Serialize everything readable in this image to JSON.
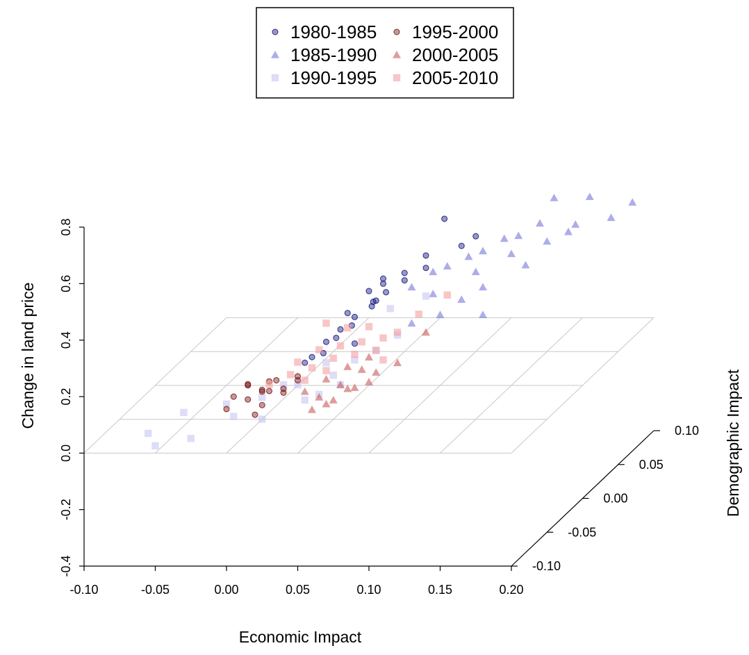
{
  "chart_data": {
    "type": "scatter",
    "projection": "3d",
    "title": "",
    "xlabel": "Economic Impact",
    "ylabel": "Demographic Impact",
    "zlabel": "Change in land price",
    "xlim": [
      -0.1,
      0.2
    ],
    "ylim": [
      -0.1,
      0.1
    ],
    "zlim": [
      -0.4,
      0.8
    ],
    "x_ticks": [
      "-0.10",
      "-0.05",
      "0.00",
      "0.05",
      "0.10",
      "0.15",
      "0.20"
    ],
    "y_ticks": [
      "-0.10",
      "-0.05",
      "0.00",
      "0.05",
      "0.10"
    ],
    "z_ticks": [
      "-0.4",
      "-0.2",
      "0.0",
      "0.2",
      "0.4",
      "0.6",
      "0.8"
    ],
    "grid": true,
    "legend_position": "top",
    "series": [
      {
        "name": "1980-1985",
        "marker": "circle",
        "color": "#1a1a80",
        "points": [
          [
            0.078,
            0.05,
            0.47
          ],
          [
            0.06,
            0.0,
            0.36
          ],
          [
            0.065,
            0.02,
            0.35
          ],
          [
            0.062,
            0.0,
            0.33
          ],
          [
            0.058,
            -0.01,
            0.32
          ],
          [
            0.055,
            0.0,
            0.3
          ],
          [
            0.05,
            -0.02,
            0.29
          ],
          [
            0.052,
            0.0,
            0.28
          ],
          [
            0.045,
            -0.03,
            0.27
          ],
          [
            0.048,
            -0.02,
            0.26
          ],
          [
            0.04,
            -0.04,
            0.25
          ],
          [
            0.042,
            -0.03,
            0.24
          ],
          [
            0.035,
            -0.05,
            0.22
          ],
          [
            0.038,
            -0.04,
            0.21
          ],
          [
            0.03,
            -0.05,
            0.2
          ],
          [
            0.06,
            0.03,
            0.3
          ],
          [
            0.07,
            0.04,
            0.32
          ],
          [
            0.085,
            0.06,
            0.35
          ],
          [
            0.09,
            0.07,
            0.36
          ],
          [
            0.05,
            0.02,
            0.33
          ],
          [
            0.045,
            0.01,
            0.31
          ],
          [
            0.055,
            -0.03,
            0.22
          ],
          [
            0.04,
            -0.01,
            0.28
          ],
          [
            0.065,
            0.05,
            0.34
          ]
        ]
      },
      {
        "name": "1985-1990",
        "marker": "triangle",
        "color": "#6a6ad8",
        "points": [
          [
            0.15,
            0.06,
            0.52
          ],
          [
            0.17,
            0.07,
            0.5
          ],
          [
            0.19,
            0.06,
            0.45
          ],
          [
            0.17,
            0.05,
            0.45
          ],
          [
            0.2,
            0.07,
            0.48
          ],
          [
            0.14,
            0.06,
            0.43
          ],
          [
            0.12,
            0.05,
            0.4
          ],
          [
            0.13,
            0.05,
            0.41
          ],
          [
            0.11,
            0.04,
            0.38
          ],
          [
            0.1,
            0.04,
            0.36
          ],
          [
            0.09,
            0.03,
            0.35
          ],
          [
            0.08,
            0.03,
            0.33
          ],
          [
            0.16,
            0.06,
            0.4
          ],
          [
            0.14,
            0.04,
            0.33
          ],
          [
            0.12,
            0.02,
            0.3
          ],
          [
            0.11,
            0.01,
            0.28
          ],
          [
            0.13,
            0.0,
            0.25
          ],
          [
            0.1,
            0.0,
            0.25
          ],
          [
            0.09,
            0.01,
            0.3
          ],
          [
            0.07,
            0.02,
            0.3
          ],
          [
            0.08,
            0.0,
            0.22
          ],
          [
            0.11,
            0.03,
            0.33
          ],
          [
            0.13,
            0.04,
            0.37
          ],
          [
            0.15,
            0.05,
            0.39
          ]
        ]
      },
      {
        "name": "1990-1995",
        "marker": "square",
        "color": "#c6c6f4",
        "points": [
          [
            -0.08,
            -0.05,
            -0.05
          ],
          [
            -0.07,
            -0.06,
            -0.07
          ],
          [
            -0.04,
            -0.07,
            -0.02
          ],
          [
            -0.06,
            -0.04,
            0.0
          ],
          [
            -0.03,
            -0.04,
            0.03
          ],
          [
            -0.02,
            -0.05,
            0.01
          ],
          [
            0.0,
            -0.05,
            0.0
          ],
          [
            0.01,
            -0.02,
            0.05
          ],
          [
            0.02,
            -0.03,
            0.02
          ],
          [
            0.03,
            -0.01,
            0.06
          ],
          [
            0.04,
            0.0,
            0.09
          ],
          [
            0.05,
            0.01,
            0.1
          ],
          [
            0.06,
            0.02,
            0.13
          ],
          [
            0.04,
            -0.02,
            0.05
          ],
          [
            0.03,
            -0.03,
            0.04
          ],
          [
            0.05,
            0.03,
            0.2
          ],
          [
            0.02,
            0.0,
            0.08
          ],
          [
            0.0,
            -0.02,
            0.05
          ],
          [
            0.07,
            0.04,
            0.22
          ],
          [
            -0.01,
            -0.03,
            0.03
          ]
        ]
      },
      {
        "name": "1995-2000",
        "marker": "circle",
        "color": "#7a1a1a",
        "points": [
          [
            -0.01,
            -0.05,
            0.07
          ],
          [
            -0.005,
            -0.04,
            0.08
          ],
          [
            0.0,
            -0.05,
            0.05
          ],
          [
            0.005,
            -0.03,
            0.06
          ],
          [
            -0.015,
            -0.04,
            0.1
          ],
          [
            0.0,
            -0.03,
            0.09
          ],
          [
            -0.02,
            -0.06,
            0.06
          ],
          [
            0.0,
            -0.06,
            0.04
          ],
          [
            -0.01,
            -0.05,
            0.12
          ],
          [
            0.01,
            -0.04,
            0.07
          ],
          [
            -0.02,
            -0.05,
            0.08
          ],
          [
            0.005,
            -0.05,
            0.1
          ],
          [
            0.01,
            -0.02,
            0.08
          ],
          [
            -0.01,
            -0.03,
            0.05
          ],
          [
            0.0,
            -0.04,
            0.11
          ],
          [
            0.015,
            -0.03,
            0.09
          ]
        ]
      },
      {
        "name": "2000-2005",
        "marker": "triangle",
        "color": "#c24a4a",
        "points": [
          [
            0.03,
            -0.03,
            0.03
          ],
          [
            0.04,
            -0.02,
            0.05
          ],
          [
            0.05,
            -0.02,
            0.04
          ],
          [
            0.04,
            -0.03,
            0.02
          ],
          [
            0.06,
            -0.01,
            0.07
          ],
          [
            0.03,
            -0.04,
            0.01
          ],
          [
            0.05,
            -0.01,
            0.08
          ],
          [
            0.02,
            -0.03,
            0.05
          ],
          [
            0.04,
            -0.04,
            0.03
          ],
          [
            0.07,
            0.0,
            0.08
          ],
          [
            0.05,
            0.0,
            0.1
          ],
          [
            0.06,
            -0.02,
            0.06
          ],
          [
            0.03,
            -0.02,
            0.07
          ],
          [
            0.08,
            0.02,
            0.14
          ],
          [
            0.04,
            -0.01,
            0.09
          ],
          [
            0.05,
            -0.03,
            0.06
          ]
        ]
      },
      {
        "name": "2005-2010",
        "marker": "square",
        "color": "#f4a0a0",
        "points": [
          [
            0.02,
            0.0,
            0.22
          ],
          [
            0.03,
            0.01,
            0.18
          ],
          [
            0.04,
            0.02,
            0.16
          ],
          [
            0.02,
            -0.01,
            0.15
          ],
          [
            0.03,
            0.0,
            0.14
          ],
          [
            0.04,
            0.01,
            0.13
          ],
          [
            0.05,
            0.02,
            0.12
          ],
          [
            0.03,
            -0.01,
            0.12
          ],
          [
            0.01,
            -0.02,
            0.13
          ],
          [
            0.02,
            -0.02,
            0.11
          ],
          [
            0.04,
            0.0,
            0.11
          ],
          [
            0.05,
            0.01,
            0.1
          ],
          [
            0.03,
            -0.02,
            0.1
          ],
          [
            0.06,
            0.02,
            0.14
          ],
          [
            0.02,
            -0.03,
            0.09
          ],
          [
            0.01,
            -0.03,
            0.11
          ],
          [
            0.07,
            0.03,
            0.18
          ],
          [
            0.06,
            0.0,
            0.09
          ],
          [
            0.0,
            -0.04,
            0.1
          ],
          [
            0.08,
            0.05,
            0.2
          ]
        ]
      }
    ]
  }
}
